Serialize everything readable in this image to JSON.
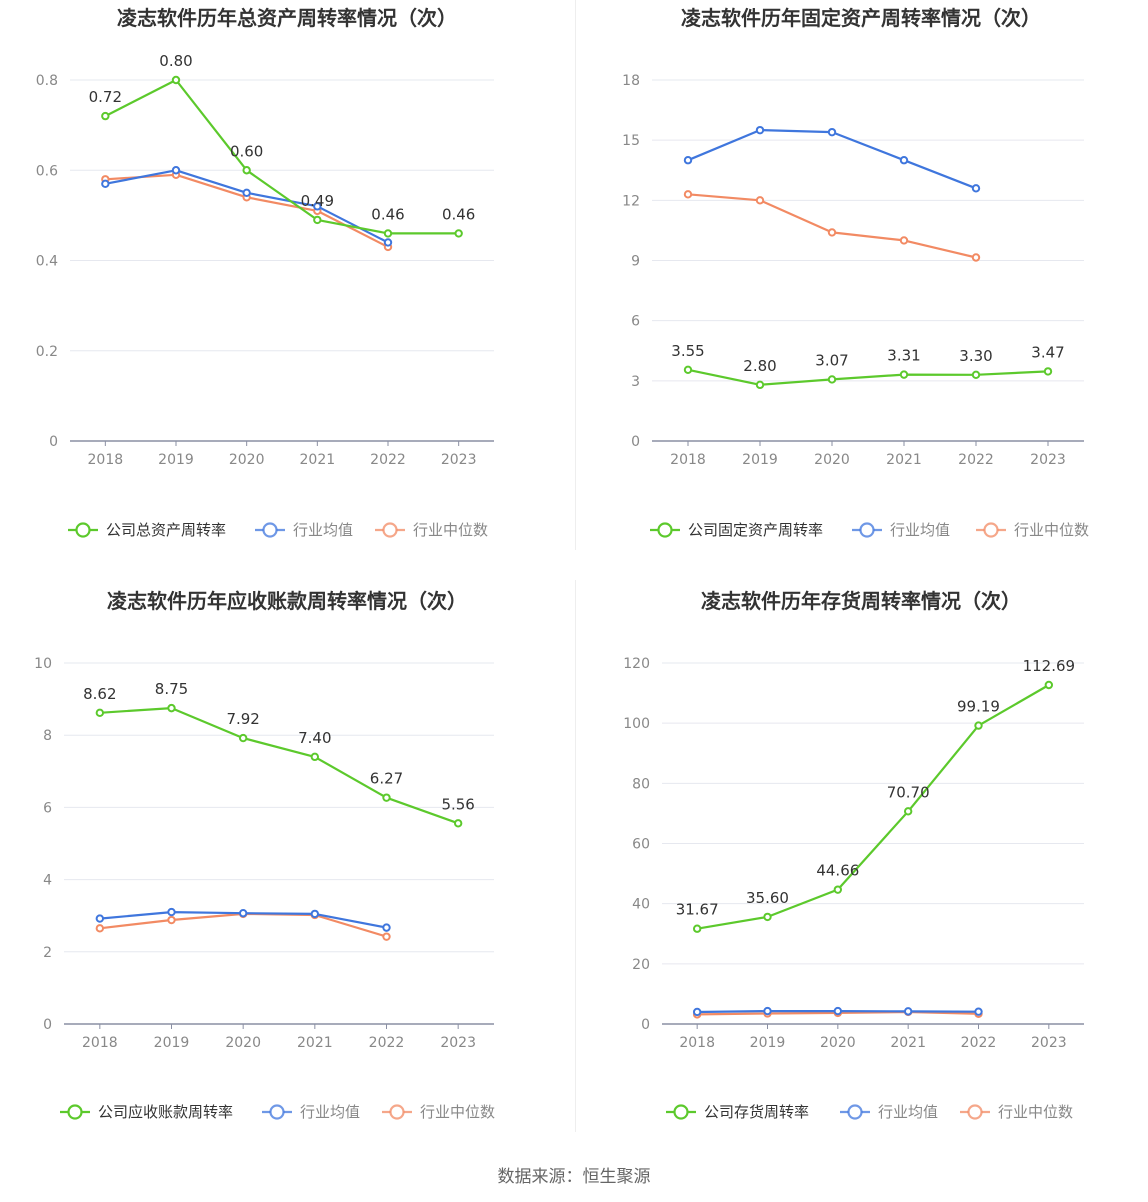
{
  "source_label": "数据来源：恒生聚源",
  "chart_data": [
    {
      "type": "line",
      "title": "凌志软件历年总资产周转率情况（次）",
      "x": [
        "2018",
        "2019",
        "2020",
        "2021",
        "2022",
        "2023"
      ],
      "ylim": [
        0,
        0.8
      ],
      "yticks": [
        "0",
        "0.2",
        "0.4",
        "0.6",
        "0.8"
      ],
      "grid": true,
      "legend": "bottom",
      "series": [
        {
          "name": "公司总资产周转率",
          "color": "#5cc92c",
          "values": [
            0.72,
            0.8,
            0.6,
            0.49,
            0.46,
            0.46
          ],
          "labels": [
            "0.72",
            "0.80",
            "0.60",
            "0.49",
            "0.46",
            "0.46"
          ]
        },
        {
          "name": "行业均值",
          "color": "#3f76dd",
          "values": [
            0.57,
            0.6,
            0.55,
            0.52,
            0.44,
            null
          ]
        },
        {
          "name": "行业中位数",
          "color": "#f28a63",
          "values": [
            0.58,
            0.59,
            0.54,
            0.51,
            0.43,
            null
          ]
        }
      ]
    },
    {
      "type": "line",
      "title": "凌志软件历年固定资产周转率情况（次）",
      "x": [
        "2018",
        "2019",
        "2020",
        "2021",
        "2022",
        "2023"
      ],
      "ylim": [
        0,
        18
      ],
      "yticks": [
        "0",
        "3",
        "6",
        "9",
        "12",
        "15",
        "18"
      ],
      "grid": true,
      "legend": "bottom",
      "series": [
        {
          "name": "公司固定资产周转率",
          "color": "#5cc92c",
          "values": [
            3.55,
            2.8,
            3.07,
            3.31,
            3.3,
            3.47
          ],
          "labels": [
            "3.55",
            "2.80",
            "3.07",
            "3.31",
            "3.30",
            "3.47"
          ]
        },
        {
          "name": "行业均值",
          "color": "#3f76dd",
          "values": [
            14.0,
            15.5,
            15.4,
            14.0,
            12.6,
            null
          ]
        },
        {
          "name": "行业中位数",
          "color": "#f28a63",
          "values": [
            12.3,
            12.0,
            10.4,
            10.0,
            9.15,
            null
          ]
        }
      ]
    },
    {
      "type": "line",
      "title": "凌志软件历年应收账款周转率情况（次）",
      "x": [
        "2018",
        "2019",
        "2020",
        "2021",
        "2022",
        "2023"
      ],
      "ylim": [
        0,
        10
      ],
      "yticks": [
        "0",
        "2",
        "4",
        "6",
        "8",
        "10"
      ],
      "grid": true,
      "legend": "bottom",
      "series": [
        {
          "name": "公司应收账款周转率",
          "color": "#5cc92c",
          "values": [
            8.62,
            8.75,
            7.92,
            7.4,
            6.27,
            5.56
          ],
          "labels": [
            "8.62",
            "8.75",
            "7.92",
            "7.40",
            "6.27",
            "5.56"
          ]
        },
        {
          "name": "行业均值",
          "color": "#3f76dd",
          "values": [
            2.92,
            3.1,
            3.07,
            3.05,
            2.67,
            null
          ]
        },
        {
          "name": "行业中位数",
          "color": "#f28a63",
          "values": [
            2.65,
            2.88,
            3.05,
            3.02,
            2.42,
            null
          ]
        }
      ]
    },
    {
      "type": "line",
      "title": "凌志软件历年存货周转率情况（次）",
      "x": [
        "2018",
        "2019",
        "2020",
        "2021",
        "2022",
        "2023"
      ],
      "ylim": [
        0,
        120
      ],
      "yticks": [
        "0",
        "20",
        "40",
        "60",
        "80",
        "100",
        "120"
      ],
      "grid": true,
      "legend": "bottom",
      "series": [
        {
          "name": "公司存货周转率",
          "color": "#5cc92c",
          "values": [
            31.67,
            35.6,
            44.66,
            70.7,
            99.19,
            112.69
          ],
          "labels": [
            "31.67",
            "35.60",
            "44.66",
            "70.70",
            "99.19",
            "112.69"
          ]
        },
        {
          "name": "行业均值",
          "color": "#3f76dd",
          "values": [
            4.0,
            4.3,
            4.3,
            4.2,
            4.1,
            null
          ]
        },
        {
          "name": "行业中位数",
          "color": "#f28a63",
          "values": [
            3.2,
            3.5,
            3.7,
            4.0,
            3.4,
            null
          ]
        }
      ]
    }
  ]
}
